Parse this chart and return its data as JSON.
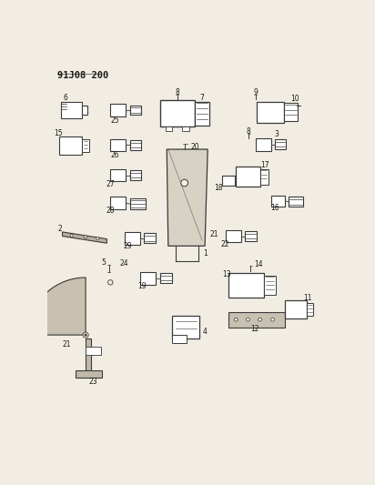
{
  "title": "91J08 200",
  "bg": "#f2ede3",
  "lc": "#3a3a3a",
  "tc": "#1a1a1a",
  "figsize": [
    4.12,
    5.33
  ],
  "dpi": 100
}
